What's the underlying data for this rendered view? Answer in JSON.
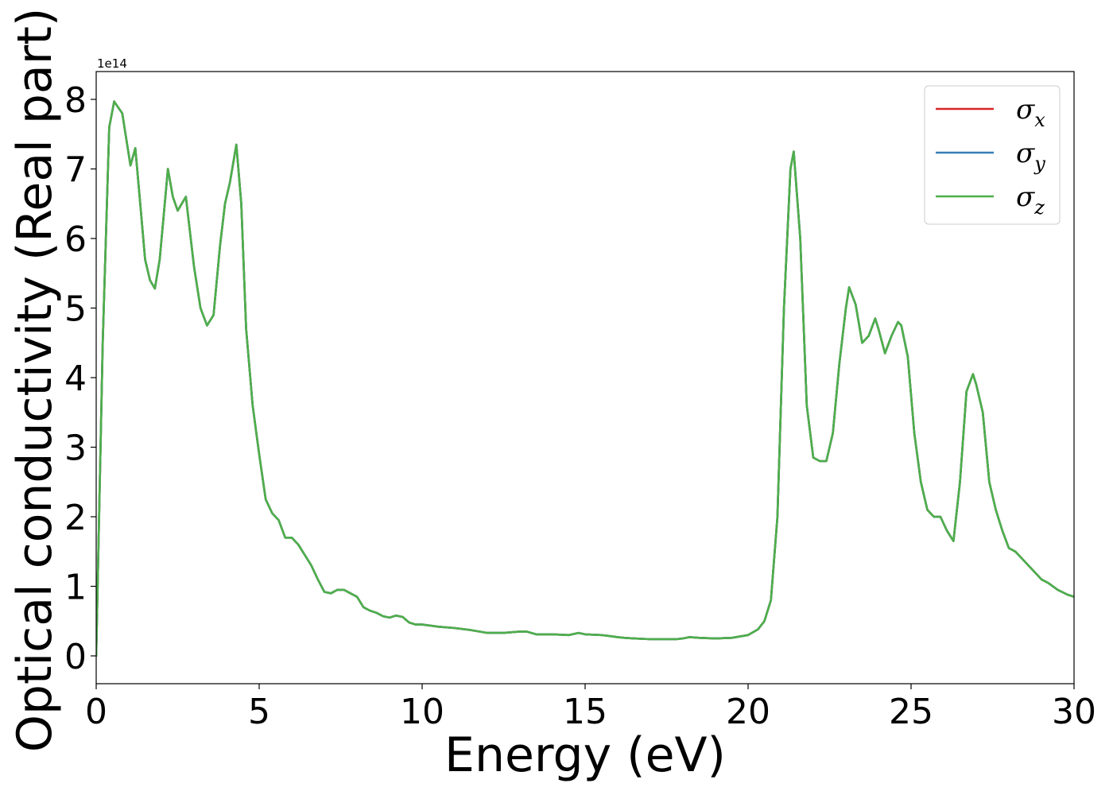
{
  "chart_data": {
    "type": "line",
    "xlabel": "Energy (eV)",
    "ylabel": "Optical conductivity (Real part)",
    "y_offset_label": "1e14",
    "xlim": [
      0,
      30
    ],
    "ylim": [
      -0.4,
      8.4
    ],
    "y_scale": "1e14",
    "x_ticks": [
      0,
      5,
      10,
      15,
      20,
      25,
      30
    ],
    "y_ticks": [
      0,
      1,
      2,
      3,
      4,
      5,
      6,
      7,
      8
    ],
    "grid": false,
    "legend_position": "top-right",
    "series": [
      {
        "name": "σx",
        "base": "σ",
        "sub": "x",
        "color": "#d62728",
        "x": [
          0,
          0.2,
          0.4,
          0.55,
          0.65,
          0.8,
          0.9,
          1.05,
          1.2,
          1.35,
          1.5,
          1.65,
          1.8,
          1.95,
          2.2,
          2.35,
          2.5,
          2.75,
          3.0,
          3.2,
          3.4,
          3.6,
          3.8,
          3.95,
          4.1,
          4.3,
          4.45,
          4.6,
          4.8,
          5.0,
          5.2,
          5.4,
          5.6,
          5.8,
          6.0,
          6.2,
          6.4,
          6.6,
          6.8,
          7.0,
          7.2,
          7.4,
          7.6,
          7.8,
          8.0,
          8.2,
          8.4,
          8.6,
          8.8,
          9.0,
          9.2,
          9.4,
          9.6,
          9.8,
          10,
          10.5,
          11,
          11.5,
          12,
          12.5,
          13,
          13.2,
          13.5,
          14,
          14.5,
          14.8,
          15,
          15.5,
          16,
          16.2,
          16.5,
          17,
          17.5,
          17.8,
          18,
          18.2,
          18.5,
          19,
          19.5,
          20,
          20.3,
          20.5,
          20.7,
          20.9,
          21.1,
          21.3,
          21.4,
          21.6,
          21.8,
          22.0,
          22.2,
          22.4,
          22.6,
          22.8,
          23.0,
          23.1,
          23.3,
          23.5,
          23.7,
          23.9,
          24.0,
          24.2,
          24.4,
          24.6,
          24.7,
          24.9,
          25.1,
          25.3,
          25.5,
          25.7,
          25.9,
          26.1,
          26.3,
          26.5,
          26.7,
          26.9,
          27.0,
          27.2,
          27.4,
          27.6,
          27.8,
          28.0,
          28.2,
          28.4,
          28.6,
          28.8,
          29.0,
          29.2,
          29.5,
          29.8,
          30
        ],
        "y": [
          0,
          4.5,
          7.6,
          7.97,
          7.9,
          7.8,
          7.5,
          7.05,
          7.3,
          6.5,
          5.7,
          5.4,
          5.28,
          5.7,
          7.0,
          6.6,
          6.4,
          6.6,
          5.6,
          5.0,
          4.75,
          4.9,
          5.9,
          6.5,
          6.8,
          7.35,
          6.5,
          4.7,
          3.6,
          2.9,
          2.25,
          2.05,
          1.95,
          1.7,
          1.7,
          1.6,
          1.45,
          1.3,
          1.1,
          0.92,
          0.9,
          0.95,
          0.95,
          0.9,
          0.85,
          0.7,
          0.65,
          0.62,
          0.57,
          0.55,
          0.58,
          0.56,
          0.48,
          0.45,
          0.45,
          0.42,
          0.4,
          0.37,
          0.33,
          0.33,
          0.35,
          0.35,
          0.31,
          0.31,
          0.3,
          0.33,
          0.31,
          0.3,
          0.27,
          0.26,
          0.25,
          0.24,
          0.24,
          0.24,
          0.25,
          0.27,
          0.26,
          0.25,
          0.26,
          0.3,
          0.38,
          0.5,
          0.8,
          2.0,
          5.0,
          7.0,
          7.25,
          6.0,
          3.6,
          2.85,
          2.8,
          2.8,
          3.2,
          4.2,
          5.0,
          5.3,
          5.05,
          4.5,
          4.6,
          4.85,
          4.7,
          4.35,
          4.6,
          4.8,
          4.75,
          4.3,
          3.2,
          2.5,
          2.1,
          2.0,
          2.0,
          1.8,
          1.65,
          2.5,
          3.8,
          4.05,
          3.9,
          3.5,
          2.5,
          2.1,
          1.8,
          1.55,
          1.5,
          1.4,
          1.3,
          1.2,
          1.1,
          1.05,
          0.95,
          0.88,
          0.85
        ]
      },
      {
        "name": "σy",
        "base": "σ",
        "sub": "y",
        "color": "#377eb8",
        "x": [
          0,
          0.2,
          0.4,
          0.55,
          0.65,
          0.8,
          0.9,
          1.05,
          1.2,
          1.35,
          1.5,
          1.65,
          1.8,
          1.95,
          2.2,
          2.35,
          2.5,
          2.75,
          3.0,
          3.2,
          3.4,
          3.6,
          3.8,
          3.95,
          4.1,
          4.3,
          4.45,
          4.6,
          4.8,
          5.0,
          5.2,
          5.4,
          5.6,
          5.8,
          6.0,
          6.2,
          6.4,
          6.6,
          6.8,
          7.0,
          7.2,
          7.4,
          7.6,
          7.8,
          8.0,
          8.2,
          8.4,
          8.6,
          8.8,
          9.0,
          9.2,
          9.4,
          9.6,
          9.8,
          10,
          10.5,
          11,
          11.5,
          12,
          12.5,
          13,
          13.2,
          13.5,
          14,
          14.5,
          14.8,
          15,
          15.5,
          16,
          16.2,
          16.5,
          17,
          17.5,
          17.8,
          18,
          18.2,
          18.5,
          19,
          19.5,
          20,
          20.3,
          20.5,
          20.7,
          20.9,
          21.1,
          21.3,
          21.4,
          21.6,
          21.8,
          22.0,
          22.2,
          22.4,
          22.6,
          22.8,
          23.0,
          23.1,
          23.3,
          23.5,
          23.7,
          23.9,
          24.0,
          24.2,
          24.4,
          24.6,
          24.7,
          24.9,
          25.1,
          25.3,
          25.5,
          25.7,
          25.9,
          26.1,
          26.3,
          26.5,
          26.7,
          26.9,
          27.0,
          27.2,
          27.4,
          27.6,
          27.8,
          28.0,
          28.2,
          28.4,
          28.6,
          28.8,
          29.0,
          29.2,
          29.5,
          29.8,
          30
        ],
        "y": [
          0,
          4.5,
          7.6,
          7.97,
          7.9,
          7.8,
          7.5,
          7.05,
          7.3,
          6.5,
          5.7,
          5.4,
          5.28,
          5.7,
          7.0,
          6.6,
          6.4,
          6.6,
          5.6,
          5.0,
          4.75,
          4.9,
          5.9,
          6.5,
          6.8,
          7.35,
          6.5,
          4.7,
          3.6,
          2.9,
          2.25,
          2.05,
          1.95,
          1.7,
          1.7,
          1.6,
          1.45,
          1.3,
          1.1,
          0.92,
          0.9,
          0.95,
          0.95,
          0.9,
          0.85,
          0.7,
          0.65,
          0.62,
          0.57,
          0.55,
          0.58,
          0.56,
          0.48,
          0.45,
          0.45,
          0.42,
          0.4,
          0.37,
          0.33,
          0.33,
          0.35,
          0.35,
          0.31,
          0.31,
          0.3,
          0.33,
          0.31,
          0.3,
          0.27,
          0.26,
          0.25,
          0.24,
          0.24,
          0.24,
          0.25,
          0.27,
          0.26,
          0.25,
          0.26,
          0.3,
          0.38,
          0.5,
          0.8,
          2.0,
          5.0,
          7.0,
          7.25,
          6.0,
          3.6,
          2.85,
          2.8,
          2.8,
          3.2,
          4.2,
          5.0,
          5.3,
          5.05,
          4.5,
          4.6,
          4.85,
          4.7,
          4.35,
          4.6,
          4.8,
          4.75,
          4.3,
          3.2,
          2.5,
          2.1,
          2.0,
          2.0,
          1.8,
          1.65,
          2.5,
          3.8,
          4.05,
          3.9,
          3.5,
          2.5,
          2.1,
          1.8,
          1.55,
          1.5,
          1.4,
          1.3,
          1.2,
          1.1,
          1.05,
          0.95,
          0.88,
          0.85
        ]
      },
      {
        "name": "σz",
        "base": "σ",
        "sub": "z",
        "color": "#4daf4a",
        "x": [
          0,
          0.2,
          0.4,
          0.55,
          0.65,
          0.8,
          0.9,
          1.05,
          1.2,
          1.35,
          1.5,
          1.65,
          1.8,
          1.95,
          2.2,
          2.35,
          2.5,
          2.75,
          3.0,
          3.2,
          3.4,
          3.6,
          3.8,
          3.95,
          4.1,
          4.3,
          4.45,
          4.6,
          4.8,
          5.0,
          5.2,
          5.4,
          5.6,
          5.8,
          6.0,
          6.2,
          6.4,
          6.6,
          6.8,
          7.0,
          7.2,
          7.4,
          7.6,
          7.8,
          8.0,
          8.2,
          8.4,
          8.6,
          8.8,
          9.0,
          9.2,
          9.4,
          9.6,
          9.8,
          10,
          10.5,
          11,
          11.5,
          12,
          12.5,
          13,
          13.2,
          13.5,
          14,
          14.5,
          14.8,
          15,
          15.5,
          16,
          16.2,
          16.5,
          17,
          17.5,
          17.8,
          18,
          18.2,
          18.5,
          19,
          19.5,
          20,
          20.3,
          20.5,
          20.7,
          20.9,
          21.1,
          21.3,
          21.4,
          21.6,
          21.8,
          22.0,
          22.2,
          22.4,
          22.6,
          22.8,
          23.0,
          23.1,
          23.3,
          23.5,
          23.7,
          23.9,
          24.0,
          24.2,
          24.4,
          24.6,
          24.7,
          24.9,
          25.1,
          25.3,
          25.5,
          25.7,
          25.9,
          26.1,
          26.3,
          26.5,
          26.7,
          26.9,
          27.0,
          27.2,
          27.4,
          27.6,
          27.8,
          28.0,
          28.2,
          28.4,
          28.6,
          28.8,
          29.0,
          29.2,
          29.5,
          29.8,
          30
        ],
        "y": [
          0,
          4.5,
          7.6,
          7.97,
          7.9,
          7.8,
          7.5,
          7.05,
          7.3,
          6.5,
          5.7,
          5.4,
          5.28,
          5.7,
          7.0,
          6.6,
          6.4,
          6.6,
          5.6,
          5.0,
          4.75,
          4.9,
          5.9,
          6.5,
          6.8,
          7.35,
          6.5,
          4.7,
          3.6,
          2.9,
          2.25,
          2.05,
          1.95,
          1.7,
          1.7,
          1.6,
          1.45,
          1.3,
          1.1,
          0.92,
          0.9,
          0.95,
          0.95,
          0.9,
          0.85,
          0.7,
          0.65,
          0.62,
          0.57,
          0.55,
          0.58,
          0.56,
          0.48,
          0.45,
          0.45,
          0.42,
          0.4,
          0.37,
          0.33,
          0.33,
          0.35,
          0.35,
          0.31,
          0.31,
          0.3,
          0.33,
          0.31,
          0.3,
          0.27,
          0.26,
          0.25,
          0.24,
          0.24,
          0.24,
          0.25,
          0.27,
          0.26,
          0.25,
          0.26,
          0.3,
          0.38,
          0.5,
          0.8,
          2.0,
          5.0,
          7.0,
          7.25,
          6.0,
          3.6,
          2.85,
          2.8,
          2.8,
          3.2,
          4.2,
          5.0,
          5.3,
          5.05,
          4.5,
          4.6,
          4.85,
          4.7,
          4.35,
          4.6,
          4.8,
          4.75,
          4.3,
          3.2,
          2.5,
          2.1,
          2.0,
          2.0,
          1.8,
          1.65,
          2.5,
          3.8,
          4.05,
          3.9,
          3.5,
          2.5,
          2.1,
          1.8,
          1.55,
          1.5,
          1.4,
          1.3,
          1.2,
          1.1,
          1.05,
          0.95,
          0.88,
          0.85
        ]
      }
    ]
  }
}
